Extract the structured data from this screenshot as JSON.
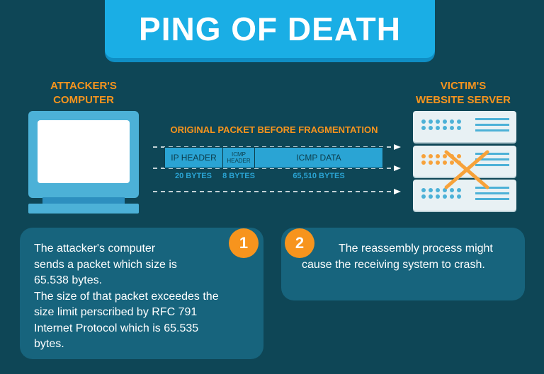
{
  "title": "PING OF DEATH",
  "attacker": {
    "label_line1": "ATTACKER'S",
    "label_line2": "COMPUTER"
  },
  "victim": {
    "label_line1": "VICTIM'S",
    "label_line2": "WEBSITE SERVER"
  },
  "packet": {
    "caption": "ORIGINAL PACKET BEFORE FRAGMENTATION",
    "segments": [
      {
        "label": "IP HEADER",
        "bytes": "20 BYTES"
      },
      {
        "label_line1": "ICMP",
        "label_line2": "HEADER",
        "bytes": "8 BYTES"
      },
      {
        "label": "ICMP DATA",
        "bytes": "65,510 BYTES"
      }
    ]
  },
  "steps": [
    {
      "number": "1",
      "lines": [
        "The attacker's computer",
        "sends a packet which size is",
        "65.538 bytes.",
        "The size of that packet exceedes the",
        "size limit perscribed by RFC 791",
        "Internet Protocol which is 65.535",
        "bytes."
      ]
    },
    {
      "number": "2",
      "text": "The reassembly process might cause the receiving system to crash."
    }
  ],
  "colors": {
    "background": "#0e4656",
    "title_bg": "#1aaee5",
    "accent_orange": "#f7941d",
    "packet_blue": "#2aa4d4",
    "box_bg": "#17647d",
    "device_blue": "#4cb1d7"
  }
}
